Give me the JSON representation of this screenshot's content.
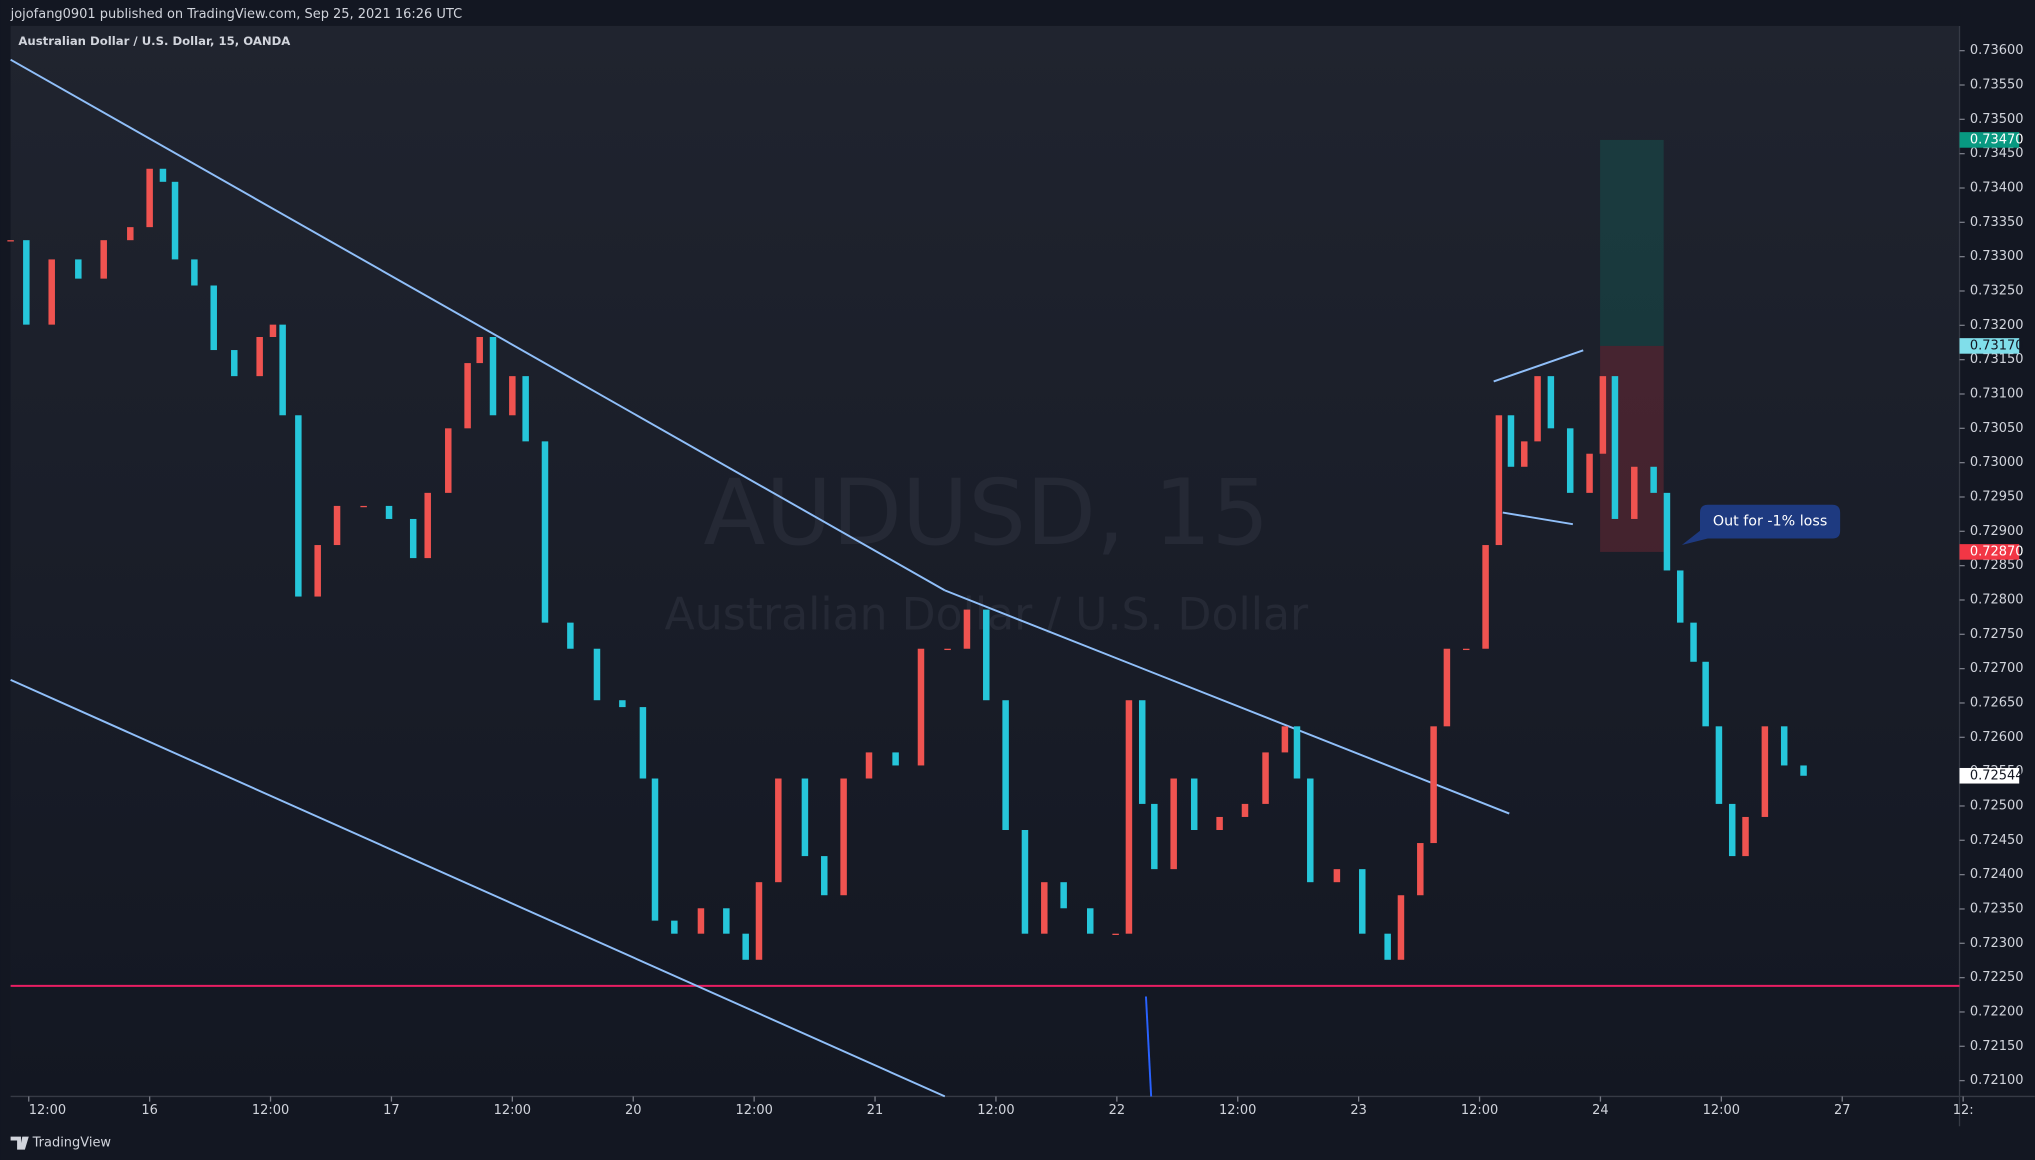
{
  "chart_data": {
    "type": "candlestick",
    "publisher": "jojofang0901 published on TradingView.com, Sep 25, 2021 16:26 UTC",
    "title": "Australian Dollar / U.S. Dollar, 15, OANDA",
    "watermark": "AUDUSD, 15",
    "watermark_subtitle": "Australian Dollar / U.S. Dollar",
    "annotation": "Out for -1% loss",
    "brand": "TradingView",
    "x": [
      -0.15,
      -0.02,
      0.19,
      0.41,
      0.62,
      0.84,
      1.0,
      1.11,
      1.21,
      1.37,
      1.53,
      1.7,
      1.91,
      2.02,
      2.1,
      2.23,
      2.39,
      2.55,
      2.77,
      2.98,
      3.18,
      3.3,
      3.47,
      3.63,
      3.73,
      3.84,
      4.0,
      4.11,
      4.27,
      4.48,
      4.7,
      4.91,
      5.08,
      5.18,
      5.34,
      5.56,
      5.77,
      5.93,
      6.04,
      6.2,
      6.42,
      6.58,
      6.74,
      6.95,
      7.17,
      7.38,
      7.6,
      7.76,
      7.92,
      8.08,
      8.24,
      8.4,
      8.56,
      8.78,
      8.99,
      9.1,
      9.21,
      9.31,
      9.47,
      9.64,
      9.85,
      10.06,
      10.23,
      10.39,
      10.49,
      10.6,
      10.82,
      11.03,
      11.24,
      11.35,
      11.51,
      11.62,
      11.73,
      11.89,
      12.05,
      12.16,
      12.26,
      12.37,
      12.48,
      12.59,
      12.75,
      12.91,
      13.02,
      13.12,
      13.28,
      13.44,
      13.55,
      13.66,
      13.77,
      13.87,
      13.98,
      14.09,
      14.2,
      14.36,
      14.52,
      14.68
    ],
    "series": [
      {
        "name": "AUDUSD",
        "up_color": "#ef5350",
        "down_color": "#26c6da",
        "values": [
          0.73324,
          0.73201,
          0.73296,
          0.73268,
          0.73324,
          0.73343,
          0.73428,
          0.73409,
          0.73296,
          0.73258,
          0.73164,
          0.73126,
          0.73183,
          0.73201,
          0.73069,
          0.72805,
          0.7288,
          0.72937,
          0.72937,
          0.72918,
          0.72861,
          0.72956,
          0.7305,
          0.73145,
          0.73183,
          0.73069,
          0.73126,
          0.73031,
          0.72767,
          0.72729,
          0.72654,
          0.72644,
          0.7254,
          0.72333,
          0.72314,
          0.72351,
          0.72314,
          0.72276,
          0.72389,
          0.7254,
          0.72427,
          0.7237,
          0.7254,
          0.72578,
          0.72559,
          0.72729,
          0.72729,
          0.72786,
          0.72654,
          0.72465,
          0.72314,
          0.72389,
          0.72351,
          0.72314,
          0.72314,
          0.72654,
          0.72503,
          0.72408,
          0.7254,
          0.72465,
          0.72484,
          0.72503,
          0.72578,
          0.72616,
          0.7254,
          0.72389,
          0.72408,
          0.72314,
          0.72276,
          0.7237,
          0.72446,
          0.72616,
          0.72729,
          0.72729,
          0.7288,
          0.73069,
          0.72994,
          0.73031,
          0.73126,
          0.7305,
          0.72956,
          0.73013,
          0.73126,
          0.72918,
          0.72994,
          0.72956,
          0.72843,
          0.72767,
          0.7271,
          0.72616,
          0.72503,
          0.72427,
          0.72484,
          0.72616,
          0.72559,
          0.72544
        ]
      }
    ],
    "last_price_label": "0.72544",
    "price_labels": [
      {
        "value": 0.7347,
        "label": "0.73470",
        "color": "#089981",
        "text_color": "#ffffff"
      },
      {
        "value": 0.7317,
        "label": "0.73170",
        "color": "#80deea",
        "text_color": "#131722"
      },
      {
        "value": 0.7287,
        "label": "0.72870",
        "color": "#f23645",
        "text_color": "#ffffff"
      }
    ],
    "support_level": 0.72238,
    "xlim": [
      -0.15,
      15.97
    ],
    "ylim": [
      0.72077,
      0.73636
    ],
    "xticks": [
      {
        "value": 0,
        "label": "12:00"
      },
      {
        "value": 1,
        "label": "16"
      },
      {
        "value": 2,
        "label": "12:00"
      },
      {
        "value": 3,
        "label": "17"
      },
      {
        "value": 4,
        "label": "12:00"
      },
      {
        "value": 5,
        "label": "20"
      },
      {
        "value": 6,
        "label": "12:00"
      },
      {
        "value": 7,
        "label": "21"
      },
      {
        "value": 8,
        "label": "12:00"
      },
      {
        "value": 9,
        "label": "22"
      },
      {
        "value": 10,
        "label": "12:00"
      },
      {
        "value": 11,
        "label": "23"
      },
      {
        "value": 12,
        "label": "12:00"
      },
      {
        "value": 13,
        "label": "24"
      },
      {
        "value": 14,
        "label": "12:00"
      },
      {
        "value": 15,
        "label": "27"
      },
      {
        "value": 16,
        "label": "12:"
      }
    ],
    "yticks": [
      {
        "value": 0.736,
        "label": "0.73600"
      },
      {
        "value": 0.7355,
        "label": "0.73550"
      },
      {
        "value": 0.735,
        "label": "0.73500"
      },
      {
        "value": 0.7345,
        "label": "0.73450"
      },
      {
        "value": 0.734,
        "label": "0.73400"
      },
      {
        "value": 0.7335,
        "label": "0.73350"
      },
      {
        "value": 0.733,
        "label": "0.73300"
      },
      {
        "value": 0.7325,
        "label": "0.73250"
      },
      {
        "value": 0.732,
        "label": "0.73200"
      },
      {
        "value": 0.7315,
        "label": "0.73150"
      },
      {
        "value": 0.731,
        "label": "0.73100"
      },
      {
        "value": 0.7305,
        "label": "0.73050"
      },
      {
        "value": 0.73,
        "label": "0.73000"
      },
      {
        "value": 0.7295,
        "label": "0.72950"
      },
      {
        "value": 0.729,
        "label": "0.72900"
      },
      {
        "value": 0.7285,
        "label": "0.72850"
      },
      {
        "value": 0.728,
        "label": "0.72800"
      },
      {
        "value": 0.7275,
        "label": "0.72750"
      },
      {
        "value": 0.727,
        "label": "0.72700"
      },
      {
        "value": 0.7265,
        "label": "0.72650"
      },
      {
        "value": 0.726,
        "label": "0.72600"
      },
      {
        "value": 0.7255,
        "label": "0.72550"
      },
      {
        "value": 0.725,
        "label": "0.72500"
      },
      {
        "value": 0.7245,
        "label": "0.72450"
      },
      {
        "value": 0.724,
        "label": "0.72400"
      },
      {
        "value": 0.7235,
        "label": "0.72350"
      },
      {
        "value": 0.723,
        "label": "0.72300"
      },
      {
        "value": 0.7225,
        "label": "0.72250"
      },
      {
        "value": 0.722,
        "label": "0.72200"
      },
      {
        "value": 0.7215,
        "label": "0.72150"
      },
      {
        "value": 0.721,
        "label": "0.72100"
      }
    ]
  }
}
